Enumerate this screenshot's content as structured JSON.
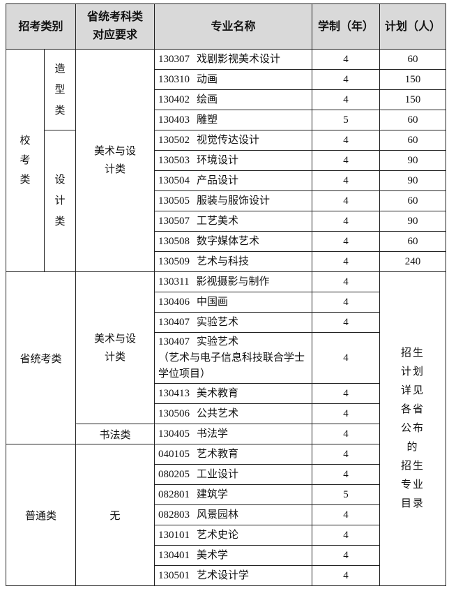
{
  "headers": {
    "category": "招考类别",
    "requirement": "省统考科类对应要求",
    "major": "专业名称",
    "years": "学制（年）",
    "plan": "计划（人）"
  },
  "groups": {
    "school_exam": "校考类",
    "modeling": "造型类",
    "design": "设计类",
    "provincial_exam": "省统考类",
    "general": "普通类",
    "art_design_1": "美术与设计类",
    "art_design_2": "美术与设计类",
    "calligraphy": "书法类",
    "none": "无"
  },
  "plan_note_lines": [
    "招生",
    "计划",
    "详见",
    "各省",
    "公布",
    "的",
    "招生",
    "专业",
    "目录"
  ],
  "rows": [
    {
      "code": "130307",
      "name": "戏剧影视美术设计",
      "years": "4",
      "plan": "60"
    },
    {
      "code": "130310",
      "name": "动画",
      "years": "4",
      "plan": "150"
    },
    {
      "code": "130402",
      "name": "绘画",
      "years": "4",
      "plan": "150"
    },
    {
      "code": "130403",
      "name": "雕塑",
      "years": "5",
      "plan": "60"
    },
    {
      "code": "130502",
      "name": "视觉传达设计",
      "years": "4",
      "plan": "60"
    },
    {
      "code": "130503",
      "name": "环境设计",
      "years": "4",
      "plan": "90"
    },
    {
      "code": "130504",
      "name": "产品设计",
      "years": "4",
      "plan": "90"
    },
    {
      "code": "130505",
      "name": "服装与服饰设计",
      "years": "4",
      "plan": "60"
    },
    {
      "code": "130507",
      "name": "工艺美术",
      "years": "4",
      "plan": "90"
    },
    {
      "code": "130508",
      "name": "数字媒体艺术",
      "years": "4",
      "plan": "60"
    },
    {
      "code": "130509",
      "name": "艺术与科技",
      "years": "4",
      "plan": "240"
    },
    {
      "code": "130311",
      "name": "影视摄影与制作",
      "years": "4"
    },
    {
      "code": "130406",
      "name": "中国画",
      "years": "4"
    },
    {
      "code": "130407",
      "name": "实验艺术",
      "years": "4"
    },
    {
      "code": "130407",
      "name": "实验艺术（艺术与电子信息科技联合学士学位项目）",
      "years": "4"
    },
    {
      "code": "130413",
      "name": "美术教育",
      "years": "4"
    },
    {
      "code": "130506",
      "name": "公共艺术",
      "years": "4"
    },
    {
      "code": "130405",
      "name": "书法学",
      "years": "4"
    },
    {
      "code": "040105",
      "name": "艺术教育",
      "years": "4"
    },
    {
      "code": "080205",
      "name": "工业设计",
      "years": "4"
    },
    {
      "code": "082801",
      "name": "建筑学",
      "years": "5"
    },
    {
      "code": "082803",
      "name": "风景园林",
      "years": "4"
    },
    {
      "code": "130101",
      "name": "艺术史论",
      "years": "4"
    },
    {
      "code": "130401",
      "name": "美术学",
      "years": "4"
    },
    {
      "code": "130501",
      "name": "艺术设计学",
      "years": "4"
    }
  ]
}
